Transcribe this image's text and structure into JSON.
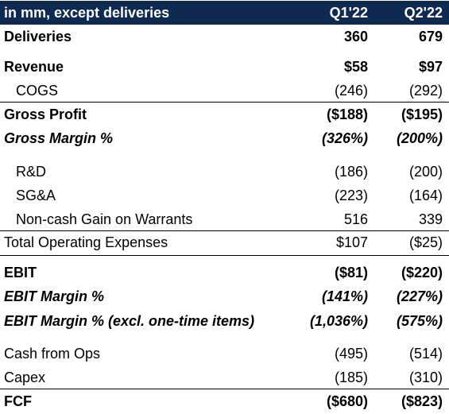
{
  "header": {
    "label": "in mm, except deliveries",
    "q1": "Q1'22",
    "q2": "Q2'22",
    "background": "#0e2a50"
  },
  "rows": [
    {
      "label": "Deliveries",
      "q1": "360",
      "q2": "679"
    },
    {
      "label": "Revenue",
      "q1": "$58",
      "q2": "$97"
    },
    {
      "label": "COGS",
      "q1": "(246)",
      "q2": "(292)"
    },
    {
      "label": "Gross Profit",
      "q1": "($188)",
      "q2": "($195)"
    },
    {
      "label": "Gross Margin %",
      "q1": "(326%)",
      "q2": "(200%)"
    },
    {
      "label": "R&D",
      "q1": "(186)",
      "q2": "(200)"
    },
    {
      "label": "SG&A",
      "q1": "(223)",
      "q2": "(164)"
    },
    {
      "label": "Non-cash Gain on Warrants",
      "q1": "516",
      "q2": "339"
    },
    {
      "label": "Total Operating Expenses",
      "q1": "$107",
      "q2": "($25)"
    },
    {
      "label": "EBIT",
      "q1": "($81)",
      "q2": "($220)"
    },
    {
      "label": "EBIT Margin %",
      "q1": "(141%)",
      "q2": "(227%)"
    },
    {
      "label": "EBIT Margin % (excl. one-time items)",
      "q1": "(1,036%)",
      "q2": "(575%)"
    },
    {
      "label": "Cash from Ops",
      "q1": "(495)",
      "q2": "(514)"
    },
    {
      "label": "Capex",
      "q1": "(185)",
      "q2": "(310)"
    },
    {
      "label": "FCF",
      "q1": "($680)",
      "q2": "($823)"
    }
  ]
}
